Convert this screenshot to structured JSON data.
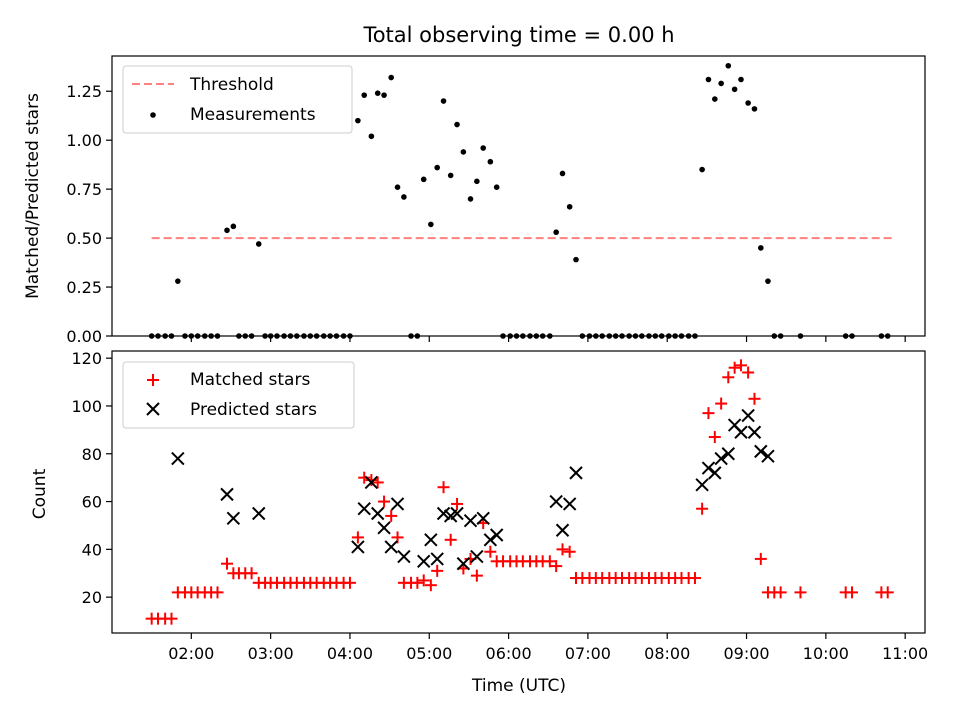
{
  "figure": {
    "title": "Total observing time = 0.00 h",
    "xlabel": "Time (UTC)",
    "x_ticks": [
      "02:00",
      "03:00",
      "04:00",
      "05:00",
      "06:00",
      "07:00",
      "08:00",
      "09:00",
      "10:00",
      "11:00"
    ],
    "x_tick_values_hours": [
      2,
      3,
      4,
      5,
      6,
      7,
      8,
      9,
      10,
      11
    ],
    "xlim_hours": [
      1.0,
      11.25
    ]
  },
  "chart_data": [
    {
      "type": "scatter",
      "ylabel": "Matched/Predicted stars",
      "ylim": [
        0,
        1.43
      ],
      "y_ticks": [
        "0.00",
        "0.25",
        "0.50",
        "0.75",
        "1.00",
        "1.25"
      ],
      "y_tick_values": [
        0,
        0.25,
        0.5,
        0.75,
        1.0,
        1.25
      ],
      "legend_position": "top-left",
      "threshold": {
        "name": "Threshold",
        "color": "#ff8080",
        "x": [
          1.5,
          10.83
        ],
        "y": 0.5
      },
      "series": [
        {
          "name": "Measurements",
          "color": "#000000",
          "marker": "dot",
          "points": [
            [
              1.5,
              0
            ],
            [
              1.58,
              0
            ],
            [
              1.67,
              0
            ],
            [
              1.75,
              0
            ],
            [
              1.83,
              0.28
            ],
            [
              1.92,
              0
            ],
            [
              2.0,
              0
            ],
            [
              2.08,
              0
            ],
            [
              2.17,
              0
            ],
            [
              2.25,
              0
            ],
            [
              2.33,
              0
            ],
            [
              2.45,
              0.54
            ],
            [
              2.53,
              0.56
            ],
            [
              2.6,
              0
            ],
            [
              2.68,
              0
            ],
            [
              2.76,
              0
            ],
            [
              2.85,
              0.47
            ],
            [
              2.93,
              0
            ],
            [
              3.0,
              0
            ],
            [
              3.08,
              0
            ],
            [
              3.17,
              0
            ],
            [
              3.25,
              0
            ],
            [
              3.33,
              0
            ],
            [
              3.42,
              0
            ],
            [
              3.5,
              0
            ],
            [
              3.58,
              0
            ],
            [
              3.67,
              0
            ],
            [
              3.75,
              0
            ],
            [
              3.83,
              0
            ],
            [
              3.92,
              0
            ],
            [
              4.0,
              0
            ],
            [
              4.1,
              1.1
            ],
            [
              4.18,
              1.23
            ],
            [
              4.27,
              1.02
            ],
            [
              4.35,
              1.24
            ],
            [
              4.43,
              1.23
            ],
            [
              4.52,
              1.32
            ],
            [
              4.6,
              0.76
            ],
            [
              4.68,
              0.71
            ],
            [
              4.77,
              0
            ],
            [
              4.85,
              0
            ],
            [
              4.93,
              0.8
            ],
            [
              5.02,
              0.57
            ],
            [
              5.1,
              0.86
            ],
            [
              5.18,
              1.2
            ],
            [
              5.27,
              0.82
            ],
            [
              5.35,
              1.08
            ],
            [
              5.43,
              0.94
            ],
            [
              5.52,
              0.7
            ],
            [
              5.6,
              0.79
            ],
            [
              5.68,
              0.96
            ],
            [
              5.77,
              0.89
            ],
            [
              5.85,
              0.76
            ],
            [
              5.93,
              0
            ],
            [
              6.02,
              0
            ],
            [
              6.1,
              0
            ],
            [
              6.18,
              0
            ],
            [
              6.27,
              0
            ],
            [
              6.35,
              0
            ],
            [
              6.43,
              0
            ],
            [
              6.52,
              0
            ],
            [
              6.6,
              0.53
            ],
            [
              6.68,
              0.83
            ],
            [
              6.77,
              0.66
            ],
            [
              6.85,
              0.39
            ],
            [
              6.93,
              0
            ],
            [
              7.02,
              0
            ],
            [
              7.1,
              0
            ],
            [
              7.18,
              0
            ],
            [
              7.27,
              0
            ],
            [
              7.35,
              0
            ],
            [
              7.43,
              0
            ],
            [
              7.52,
              0
            ],
            [
              7.6,
              0
            ],
            [
              7.68,
              0
            ],
            [
              7.77,
              0
            ],
            [
              7.85,
              0
            ],
            [
              7.93,
              0
            ],
            [
              8.02,
              0
            ],
            [
              8.1,
              0
            ],
            [
              8.18,
              0
            ],
            [
              8.27,
              0
            ],
            [
              8.35,
              0
            ],
            [
              8.44,
              0.85
            ],
            [
              8.52,
              1.31
            ],
            [
              8.6,
              1.21
            ],
            [
              8.68,
              1.29
            ],
            [
              8.77,
              1.38
            ],
            [
              8.85,
              1.26
            ],
            [
              8.93,
              1.31
            ],
            [
              9.02,
              1.19
            ],
            [
              9.1,
              1.16
            ],
            [
              9.18,
              0.45
            ],
            [
              9.27,
              0.28
            ],
            [
              9.35,
              0
            ],
            [
              9.43,
              0
            ],
            [
              9.68,
              0
            ],
            [
              10.25,
              0
            ],
            [
              10.33,
              0
            ],
            [
              10.7,
              0
            ],
            [
              10.78,
              0
            ]
          ]
        }
      ]
    },
    {
      "type": "scatter",
      "ylabel": "Count",
      "ylim": [
        5,
        123
      ],
      "y_ticks": [
        "20",
        "40",
        "60",
        "80",
        "100",
        "120"
      ],
      "y_tick_values": [
        20,
        40,
        60,
        80,
        100,
        120
      ],
      "legend_position": "top-left",
      "series": [
        {
          "name": "Matched stars",
          "color": "#ff0000",
          "marker": "plus",
          "points": [
            [
              1.5,
              11
            ],
            [
              1.58,
              11
            ],
            [
              1.67,
              11
            ],
            [
              1.75,
              11
            ],
            [
              1.83,
              22
            ],
            [
              1.92,
              22
            ],
            [
              2.0,
              22
            ],
            [
              2.08,
              22
            ],
            [
              2.17,
              22
            ],
            [
              2.25,
              22
            ],
            [
              2.33,
              22
            ],
            [
              2.45,
              34
            ],
            [
              2.53,
              30
            ],
            [
              2.6,
              30
            ],
            [
              2.68,
              30
            ],
            [
              2.76,
              30
            ],
            [
              2.85,
              26
            ],
            [
              2.93,
              26
            ],
            [
              3.0,
              26
            ],
            [
              3.08,
              26
            ],
            [
              3.17,
              26
            ],
            [
              3.25,
              26
            ],
            [
              3.33,
              26
            ],
            [
              3.42,
              26
            ],
            [
              3.5,
              26
            ],
            [
              3.58,
              26
            ],
            [
              3.67,
              26
            ],
            [
              3.75,
              26
            ],
            [
              3.83,
              26
            ],
            [
              3.92,
              26
            ],
            [
              4.0,
              26
            ],
            [
              4.1,
              45
            ],
            [
              4.18,
              70
            ],
            [
              4.27,
              69
            ],
            [
              4.35,
              68
            ],
            [
              4.43,
              60
            ],
            [
              4.52,
              54
            ],
            [
              4.6,
              45
            ],
            [
              4.68,
              26
            ],
            [
              4.77,
              26
            ],
            [
              4.85,
              26
            ],
            [
              4.93,
              27
            ],
            [
              5.02,
              25
            ],
            [
              5.1,
              31
            ],
            [
              5.18,
              66
            ],
            [
              5.27,
              44
            ],
            [
              5.35,
              59
            ],
            [
              5.43,
              32
            ],
            [
              5.52,
              36
            ],
            [
              5.6,
              29
            ],
            [
              5.68,
              51
            ],
            [
              5.77,
              39
            ],
            [
              5.85,
              35
            ],
            [
              5.93,
              35
            ],
            [
              6.02,
              35
            ],
            [
              6.1,
              35
            ],
            [
              6.18,
              35
            ],
            [
              6.27,
              35
            ],
            [
              6.35,
              35
            ],
            [
              6.43,
              35
            ],
            [
              6.52,
              35
            ],
            [
              6.6,
              33
            ],
            [
              6.68,
              40
            ],
            [
              6.77,
              39
            ],
            [
              6.85,
              28
            ],
            [
              6.93,
              28
            ],
            [
              7.02,
              28
            ],
            [
              7.1,
              28
            ],
            [
              7.18,
              28
            ],
            [
              7.27,
              28
            ],
            [
              7.35,
              28
            ],
            [
              7.43,
              28
            ],
            [
              7.52,
              28
            ],
            [
              7.6,
              28
            ],
            [
              7.68,
              28
            ],
            [
              7.77,
              28
            ],
            [
              7.85,
              28
            ],
            [
              7.93,
              28
            ],
            [
              8.02,
              28
            ],
            [
              8.1,
              28
            ],
            [
              8.18,
              28
            ],
            [
              8.27,
              28
            ],
            [
              8.35,
              28
            ],
            [
              8.44,
              57
            ],
            [
              8.52,
              97
            ],
            [
              8.6,
              87
            ],
            [
              8.68,
              101
            ],
            [
              8.77,
              112
            ],
            [
              8.85,
              116
            ],
            [
              8.93,
              117
            ],
            [
              9.02,
              114
            ],
            [
              9.1,
              103
            ],
            [
              9.18,
              36
            ],
            [
              9.27,
              22
            ],
            [
              9.35,
              22
            ],
            [
              9.43,
              22
            ],
            [
              9.68,
              22
            ],
            [
              10.25,
              22
            ],
            [
              10.33,
              22
            ],
            [
              10.7,
              22
            ],
            [
              10.78,
              22
            ]
          ]
        },
        {
          "name": "Predicted stars",
          "color": "#000000",
          "marker": "x",
          "points": [
            [
              1.83,
              78
            ],
            [
              2.45,
              63
            ],
            [
              2.53,
              53
            ],
            [
              2.85,
              55
            ],
            [
              4.1,
              41
            ],
            [
              4.18,
              57
            ],
            [
              4.27,
              68
            ],
            [
              4.35,
              55
            ],
            [
              4.43,
              49
            ],
            [
              4.52,
              41
            ],
            [
              4.6,
              59
            ],
            [
              4.68,
              37
            ],
            [
              4.93,
              35
            ],
            [
              5.02,
              44
            ],
            [
              5.1,
              36
            ],
            [
              5.18,
              55
            ],
            [
              5.27,
              54
            ],
            [
              5.35,
              55
            ],
            [
              5.43,
              34
            ],
            [
              5.52,
              52
            ],
            [
              5.6,
              37
            ],
            [
              5.68,
              53
            ],
            [
              5.77,
              44
            ],
            [
              5.85,
              46
            ],
            [
              6.6,
              60
            ],
            [
              6.68,
              48
            ],
            [
              6.77,
              59
            ],
            [
              6.85,
              72
            ],
            [
              8.44,
              67
            ],
            [
              8.52,
              74
            ],
            [
              8.6,
              72
            ],
            [
              8.68,
              78
            ],
            [
              8.77,
              80
            ],
            [
              8.85,
              92
            ],
            [
              8.93,
              89
            ],
            [
              9.02,
              96
            ],
            [
              9.1,
              89
            ],
            [
              9.18,
              81
            ],
            [
              9.27,
              79
            ]
          ]
        }
      ]
    }
  ]
}
